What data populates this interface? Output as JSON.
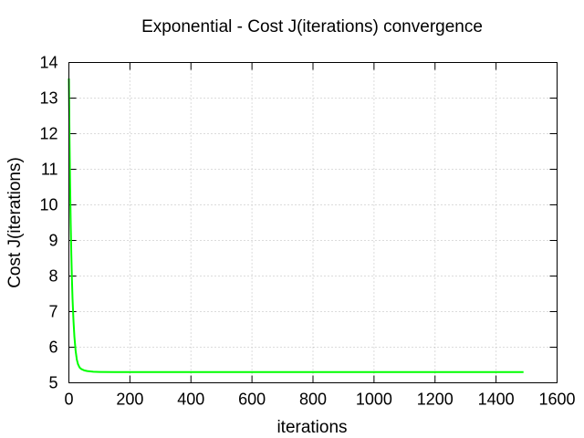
{
  "chart_data": {
    "type": "line",
    "title": "Exponential - Cost J(iterations) convergence",
    "xlabel": "iterations",
    "ylabel": "Cost J(iterations)",
    "xlim": [
      0,
      1600
    ],
    "ylim": [
      5,
      14
    ],
    "xticks": [
      0,
      200,
      400,
      600,
      800,
      1000,
      1200,
      1400,
      1600
    ],
    "yticks": [
      5,
      6,
      7,
      8,
      9,
      10,
      11,
      12,
      13,
      14
    ],
    "grid": true,
    "legend": "none",
    "series": [
      {
        "color": "#00ff00",
        "x": [
          0,
          2,
          4,
          6,
          8,
          10,
          12,
          15,
          18,
          22,
          26,
          30,
          35,
          40,
          50,
          60,
          80,
          100,
          150,
          200,
          300,
          400,
          600,
          800,
          1000,
          1200,
          1400,
          1490
        ],
        "y": [
          13.55,
          11.9,
          10.55,
          9.45,
          8.6,
          7.9,
          7.35,
          6.75,
          6.3,
          5.9,
          5.65,
          5.52,
          5.43,
          5.39,
          5.35,
          5.33,
          5.31,
          5.305,
          5.3,
          5.3,
          5.3,
          5.3,
          5.3,
          5.3,
          5.3,
          5.3,
          5.3,
          5.3
        ]
      }
    ]
  }
}
